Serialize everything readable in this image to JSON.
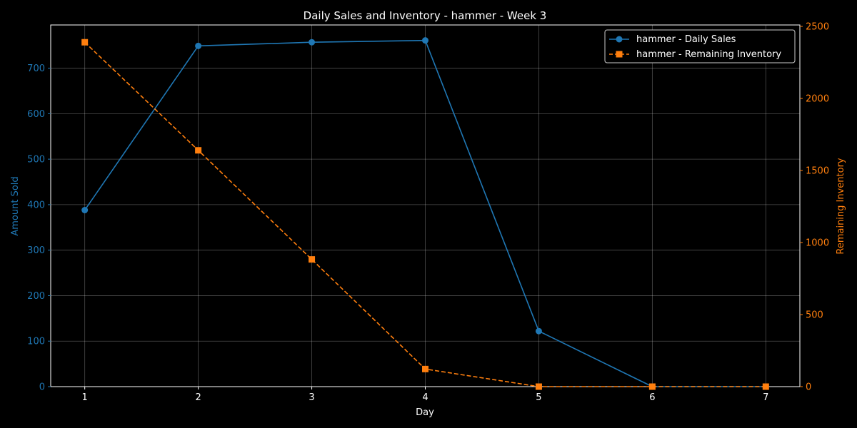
{
  "chart_data": {
    "type": "line",
    "title": "Daily Sales and Inventory - hammer - Week 3",
    "xlabel": "Day",
    "ylabel_left": "Amount Sold",
    "ylabel_right": "Remaining Inventory",
    "x": [
      1,
      2,
      3,
      4,
      5,
      6,
      7
    ],
    "xlim": [
      0.7,
      7.3
    ],
    "ylim_left": [
      0,
      795
    ],
    "ylim_right": [
      0,
      2510
    ],
    "yticks_left": [
      0,
      100,
      200,
      300,
      400,
      500,
      600,
      700
    ],
    "yticks_right": [
      0,
      500,
      1000,
      1500,
      2000,
      2500
    ],
    "grid": true,
    "legend_position": "top-right",
    "series": [
      {
        "name": "hammer - Daily Sales",
        "axis": "left",
        "color": "#1f77b4",
        "marker": "circle",
        "linestyle": "solid",
        "values": [
          388,
          749,
          757,
          761,
          122,
          0,
          0
        ]
      },
      {
        "name": "hammer - Remaining Inventory",
        "axis": "right",
        "color": "#ff7f0e",
        "marker": "square",
        "linestyle": "dashed",
        "values": [
          2390,
          1640,
          883,
          122,
          0,
          0,
          0
        ]
      }
    ]
  }
}
